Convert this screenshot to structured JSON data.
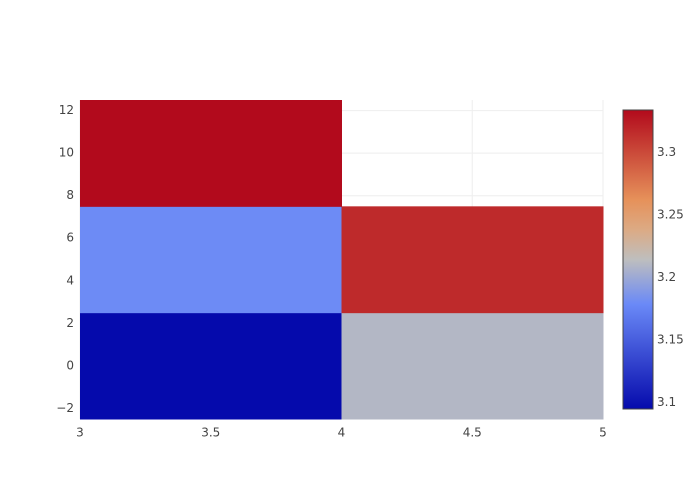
{
  "chart_data": {
    "type": "heatmap",
    "x_edges": [
      3,
      4,
      5
    ],
    "y_edges": [
      -2.5,
      2.5,
      7.5,
      12.5
    ],
    "z": [
      [
        3.095,
        3.21
      ],
      [
        3.18,
        3.317
      ],
      [
        3.334,
        null
      ]
    ],
    "zlim": [
      3.095,
      3.334
    ],
    "colorscale": [
      [
        0,
        "#050aac"
      ],
      [
        0.35,
        "#6a89f7"
      ],
      [
        0.5,
        "#bebebe"
      ],
      [
        0.6,
        "#dcaa84"
      ],
      [
        0.7,
        "#e6915a"
      ],
      [
        1,
        "#b20a1c"
      ]
    ],
    "xlim": [
      3,
      5
    ],
    "xticks": [
      3,
      3.5,
      4,
      4.5,
      5
    ],
    "ylim": [
      -2.5,
      12.5
    ],
    "yticks": [
      {
        "value": -2,
        "label": "−2"
      },
      0,
      2,
      4,
      6,
      8,
      10,
      12
    ],
    "colorbar_ticks": [
      3.1,
      3.15,
      3.2,
      3.25,
      3.3
    ],
    "grid": true
  }
}
